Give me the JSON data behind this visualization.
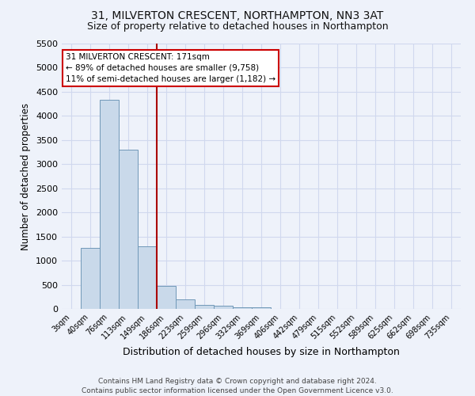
{
  "title": "31, MILVERTON CRESCENT, NORTHAMPTON, NN3 3AT",
  "subtitle": "Size of property relative to detached houses in Northampton",
  "xlabel": "Distribution of detached houses by size in Northampton",
  "ylabel": "Number of detached properties",
  "footer_line1": "Contains HM Land Registry data © Crown copyright and database right 2024.",
  "footer_line2": "Contains public sector information licensed under the Open Government Licence v3.0.",
  "annotation_line1": "31 MILVERTON CRESCENT: 171sqm",
  "annotation_line2": "← 89% of detached houses are smaller (9,758)",
  "annotation_line3": "11% of semi-detached houses are larger (1,182) →",
  "bar_labels": [
    "3sqm",
    "40sqm",
    "76sqm",
    "113sqm",
    "149sqm",
    "186sqm",
    "223sqm",
    "259sqm",
    "296sqm",
    "332sqm",
    "369sqm",
    "406sqm",
    "442sqm",
    "479sqm",
    "515sqm",
    "552sqm",
    "589sqm",
    "625sqm",
    "662sqm",
    "698sqm",
    "735sqm"
  ],
  "bar_values": [
    0,
    1270,
    4330,
    3300,
    1300,
    480,
    200,
    90,
    70,
    30,
    40,
    0,
    0,
    0,
    0,
    0,
    0,
    0,
    0,
    0,
    0
  ],
  "bar_color": "#c9d9ea",
  "bar_edge_color": "#7098b8",
  "grid_color": "#d0d8ee",
  "background_color": "#eef2fa",
  "vline_x_index": 5,
  "vline_color": "#aa0000",
  "ylim": [
    0,
    5500
  ],
  "yticks": [
    0,
    500,
    1000,
    1500,
    2000,
    2500,
    3000,
    3500,
    4000,
    4500,
    5000,
    5500
  ],
  "title_fontsize": 10,
  "subtitle_fontsize": 9,
  "annotation_box_color": "white",
  "annotation_box_edge": "#cc0000",
  "footer_color": "#444444",
  "footer_fontsize": 6.5
}
